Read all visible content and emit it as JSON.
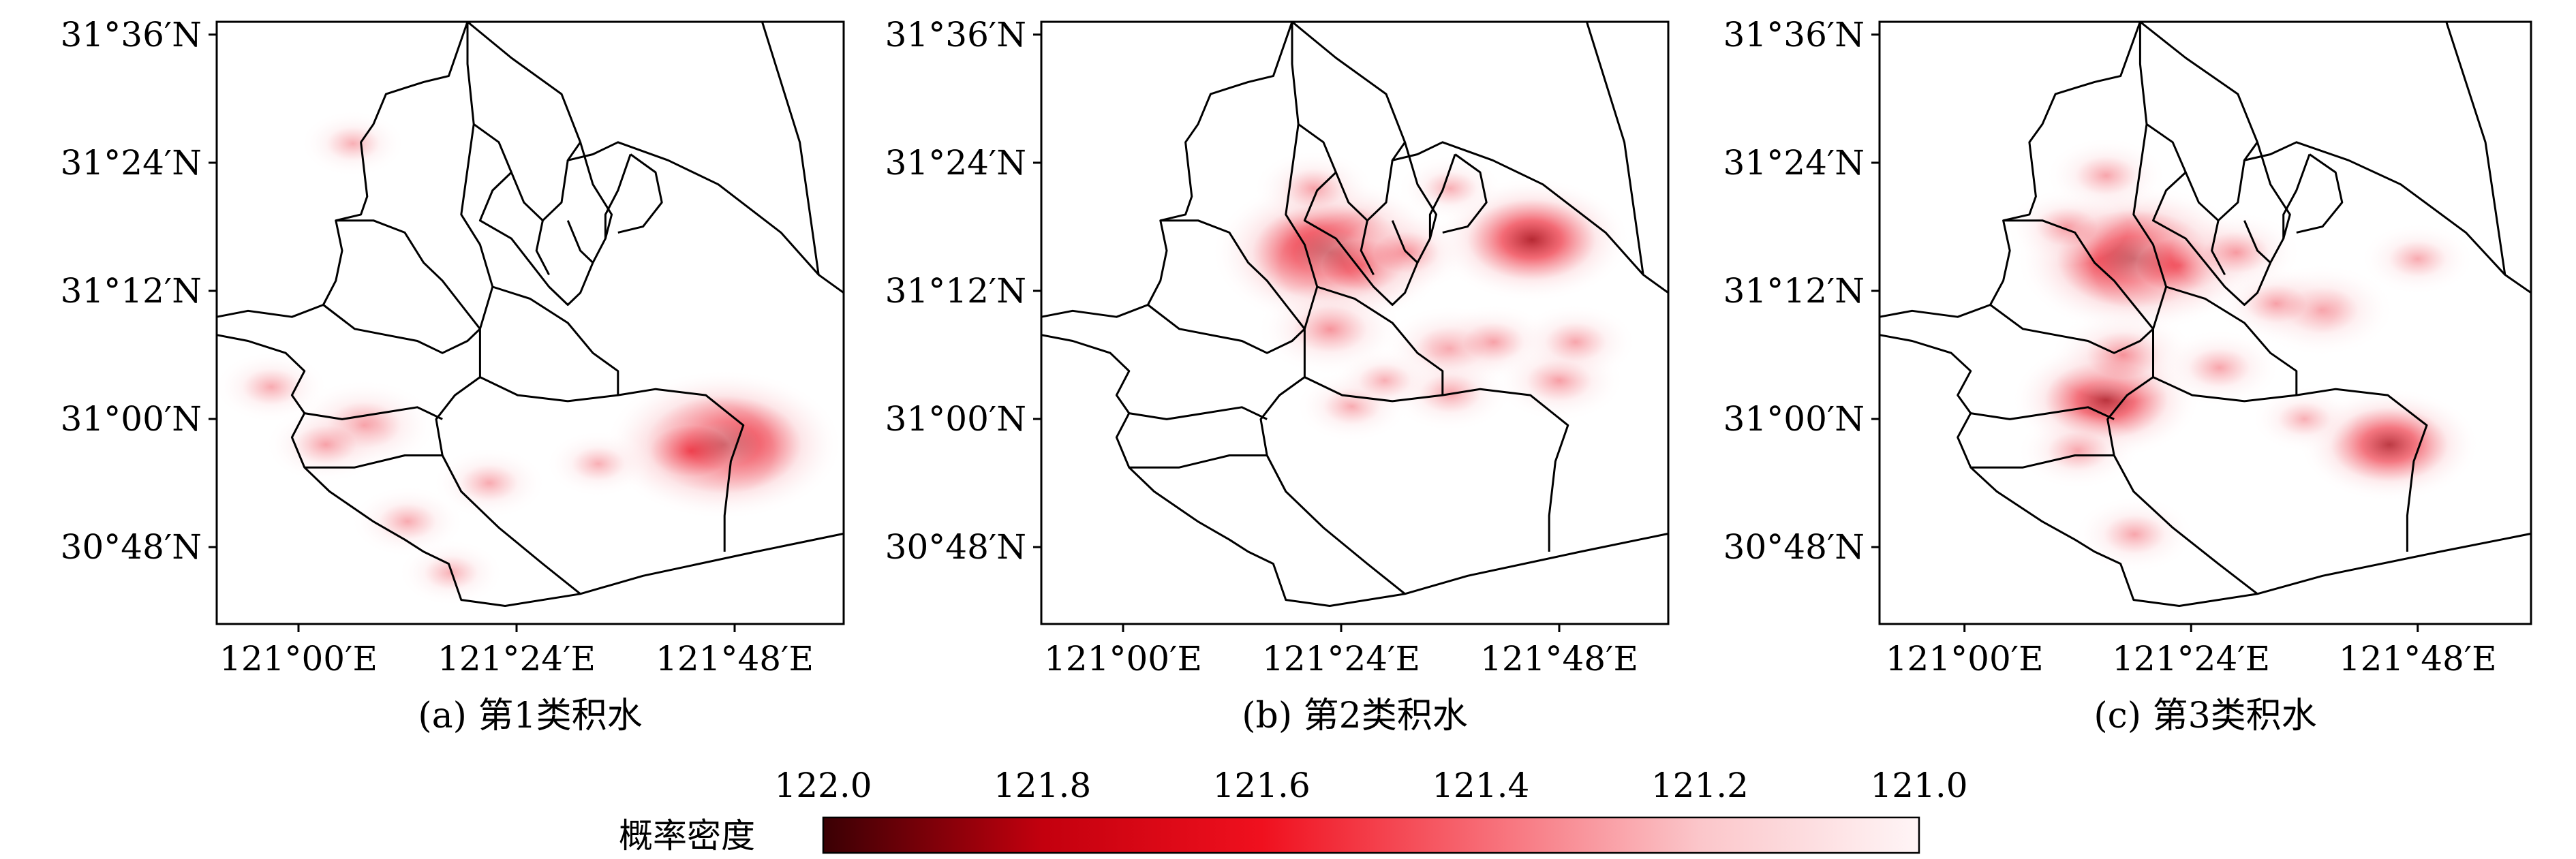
{
  "figure": {
    "panels": [
      {
        "caption": "(a) 第1类积水",
        "lat_ticks": [
          "31°36′N",
          "31°24′N",
          "31°12′N",
          "31°00′N",
          "30°48′N"
        ],
        "lon_ticks": [
          "121°00′E",
          "121°24′E",
          "121°48′E"
        ],
        "hotspots": [
          {
            "lon": 121.78,
            "lat": 30.96,
            "intensity": 1.0
          },
          {
            "lon": 121.72,
            "lat": 30.95,
            "intensity": 0.55
          },
          {
            "lon": 121.12,
            "lat": 30.99,
            "intensity": 0.45
          },
          {
            "lon": 121.05,
            "lat": 30.96,
            "intensity": 0.3
          },
          {
            "lon": 120.95,
            "lat": 31.05,
            "intensity": 0.25
          },
          {
            "lon": 121.2,
            "lat": 30.84,
            "intensity": 0.25
          },
          {
            "lon": 121.35,
            "lat": 30.9,
            "intensity": 0.25
          },
          {
            "lon": 121.1,
            "lat": 31.43,
            "intensity": 0.2
          },
          {
            "lon": 121.28,
            "lat": 30.76,
            "intensity": 0.2
          },
          {
            "lon": 121.55,
            "lat": 30.93,
            "intensity": 0.2
          }
        ]
      },
      {
        "caption": "(b) 第2类积水",
        "lat_ticks": [
          "31°36′N",
          "31°24′N",
          "31°12′N",
          "31°00′N",
          "30°48′N"
        ],
        "lon_ticks": [
          "121°00′E",
          "121°24′E",
          "121°48′E"
        ],
        "hotspots": [
          {
            "lon": 121.38,
            "lat": 31.26,
            "intensity": 1.0
          },
          {
            "lon": 121.44,
            "lat": 31.24,
            "intensity": 0.55
          },
          {
            "lon": 121.75,
            "lat": 31.28,
            "intensity": 0.75
          },
          {
            "lon": 121.38,
            "lat": 31.14,
            "intensity": 0.45
          },
          {
            "lon": 121.35,
            "lat": 31.36,
            "intensity": 0.3
          },
          {
            "lon": 121.52,
            "lat": 31.26,
            "intensity": 0.35
          },
          {
            "lon": 121.6,
            "lat": 31.11,
            "intensity": 0.4
          },
          {
            "lon": 121.68,
            "lat": 31.12,
            "intensity": 0.3
          },
          {
            "lon": 121.8,
            "lat": 31.06,
            "intensity": 0.35
          },
          {
            "lon": 121.83,
            "lat": 31.12,
            "intensity": 0.3
          },
          {
            "lon": 121.42,
            "lat": 31.02,
            "intensity": 0.25
          },
          {
            "lon": 121.6,
            "lat": 31.04,
            "intensity": 0.3
          },
          {
            "lon": 121.6,
            "lat": 31.36,
            "intensity": 0.2
          },
          {
            "lon": 121.48,
            "lat": 31.06,
            "intensity": 0.2
          }
        ]
      },
      {
        "caption": "(c) 第3类积水",
        "lat_ticks": [
          "31°36′N",
          "31°24′N",
          "31°12′N",
          "31°00′N",
          "30°48′N"
        ],
        "lon_ticks": [
          "121°00′E",
          "121°24′E",
          "121°48′E"
        ],
        "hotspots": [
          {
            "lon": 121.3,
            "lat": 31.25,
            "intensity": 1.0
          },
          {
            "lon": 121.38,
            "lat": 31.24,
            "intensity": 0.6
          },
          {
            "lon": 121.25,
            "lat": 31.03,
            "intensity": 0.7
          },
          {
            "lon": 121.28,
            "lat": 31.1,
            "intensity": 0.45
          },
          {
            "lon": 121.75,
            "lat": 30.96,
            "intensity": 0.65
          },
          {
            "lon": 121.63,
            "lat": 31.17,
            "intensity": 0.45
          },
          {
            "lon": 121.48,
            "lat": 31.26,
            "intensity": 0.35
          },
          {
            "lon": 121.55,
            "lat": 31.18,
            "intensity": 0.3
          },
          {
            "lon": 121.45,
            "lat": 31.08,
            "intensity": 0.3
          },
          {
            "lon": 121.2,
            "lat": 30.95,
            "intensity": 0.3
          },
          {
            "lon": 121.3,
            "lat": 30.82,
            "intensity": 0.3
          },
          {
            "lon": 121.25,
            "lat": 31.38,
            "intensity": 0.3
          },
          {
            "lon": 121.18,
            "lat": 31.3,
            "intensity": 0.3
          },
          {
            "lon": 121.6,
            "lat": 31.0,
            "intensity": 0.2
          },
          {
            "lon": 121.8,
            "lat": 31.25,
            "intensity": 0.25
          }
        ]
      }
    ],
    "colorbar": {
      "label": "概率密度",
      "ticks": [
        "122.0",
        "121.8",
        "121.6",
        "121.4",
        "121.2",
        "121.0"
      ],
      "colors": [
        "#3a0004",
        "#c3000e",
        "#f0101e",
        "#f76a74",
        "#fbc6ca",
        "#fff5f6"
      ]
    },
    "map_extent": {
      "lon_min": 120.85,
      "lon_max": 122.0,
      "lat_min": 30.68,
      "lat_max": 31.62
    },
    "colors": {
      "density_max": "#a8000c",
      "density_mid": "#ef3a48",
      "density_low": "#fcdde0",
      "boundary": "#000000"
    }
  }
}
